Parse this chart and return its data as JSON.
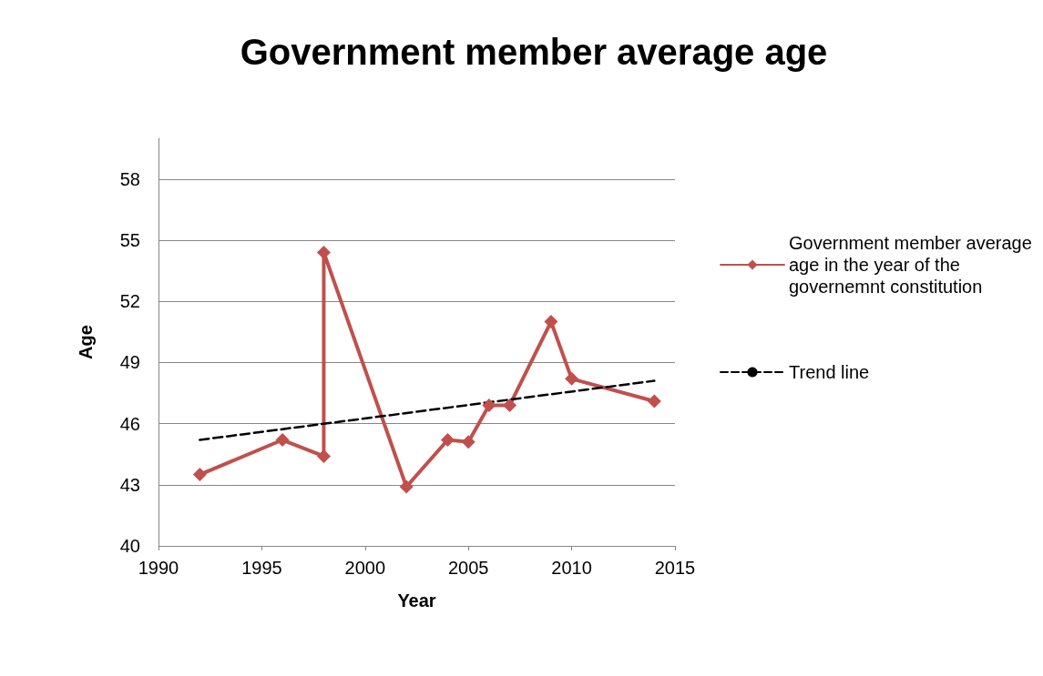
{
  "chart_data": {
    "type": "line",
    "title": "Government member average age",
    "xlabel": "Year",
    "ylabel": "Age",
    "xlim": [
      1990,
      2015
    ],
    "xticks": [
      1990,
      1995,
      2000,
      2005,
      2010,
      2015
    ],
    "ylim": [
      40,
      60
    ],
    "yticks": [
      40,
      43,
      46,
      49,
      52,
      55,
      58
    ],
    "grid": "y",
    "legend": "right",
    "series": [
      {
        "name": "Government member average age in the year of the governemnt constitution",
        "color": "#c0504d",
        "marker": "diamond",
        "line_style": "solid",
        "x": [
          1992,
          1996,
          1998,
          1998,
          2002,
          2004,
          2005,
          2006,
          2007,
          2009,
          2010,
          2014
        ],
        "values": [
          43.5,
          45.2,
          44.4,
          54.4,
          42.9,
          45.2,
          45.1,
          46.9,
          46.9,
          51.0,
          48.2,
          47.1
        ]
      },
      {
        "name": "Trend line",
        "type": "line",
        "color": "#000000",
        "marker": "none",
        "line_style": "dashed",
        "x": [
          1992,
          2014
        ],
        "values": [
          45.2,
          48.1
        ]
      }
    ]
  }
}
